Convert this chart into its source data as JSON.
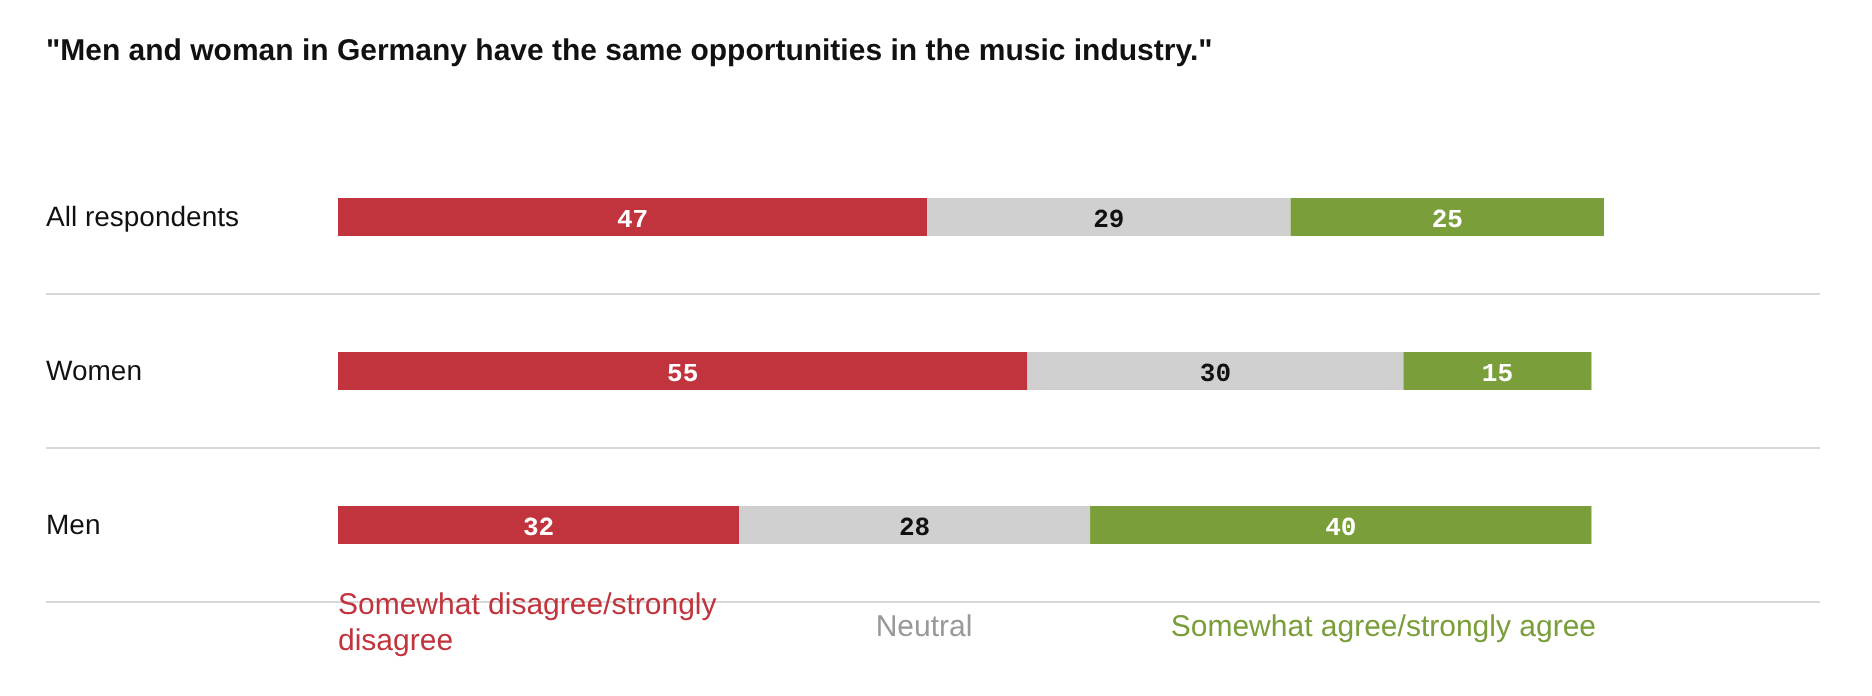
{
  "chart_data": {
    "type": "bar",
    "orientation": "horizontal",
    "stacked": true,
    "data_labels": true,
    "legend": "bottom",
    "title": "\"Men and woman in Germany have the same opportunities in the music industry.\"",
    "categories": [
      "All respondents",
      "Women",
      "Men"
    ],
    "series": [
      {
        "name": "Somewhat disagree/strongly disagree",
        "color": "#c1343d",
        "values": [
          47,
          55,
          32
        ]
      },
      {
        "name": "Neutral",
        "color": "#cfd0cf",
        "values": [
          29,
          30,
          28
        ]
      },
      {
        "name": "Somewhat agree/strongly agree",
        "color": "#7a9e3a",
        "values": [
          25,
          15,
          40
        ]
      }
    ]
  }
}
